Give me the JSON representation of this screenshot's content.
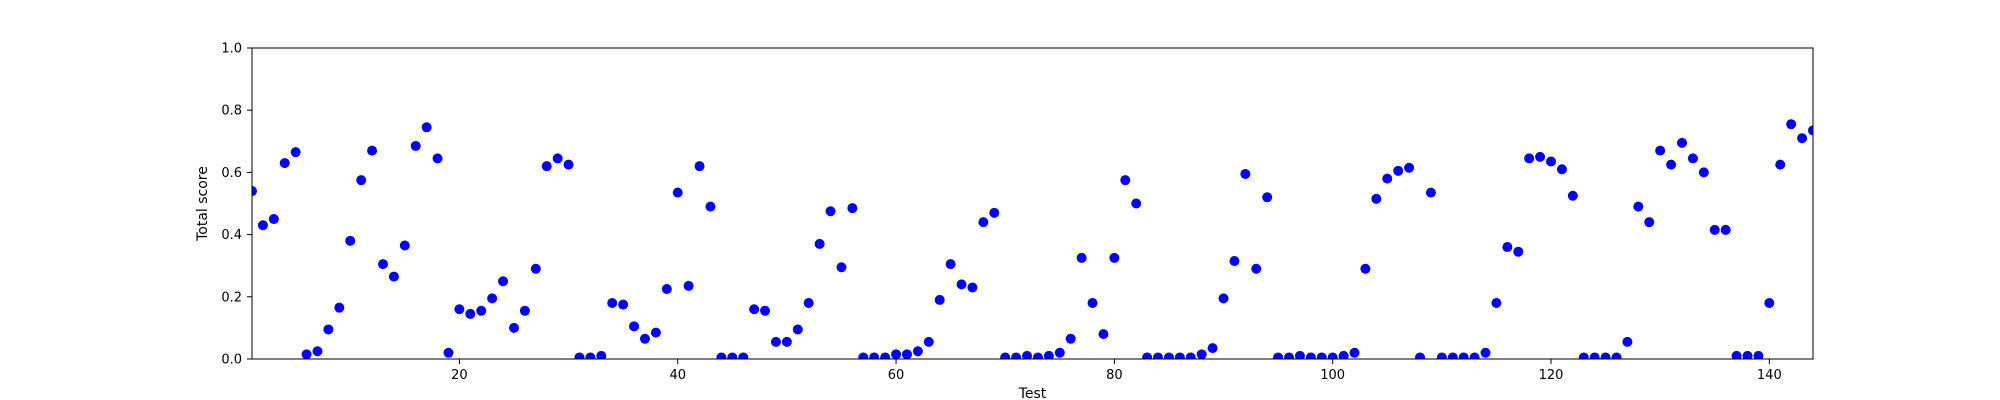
{
  "chart_data": {
    "type": "scatter",
    "xlabel": "Test",
    "ylabel": "Total score",
    "xlim": [
      1,
      144
    ],
    "ylim": [
      0.0,
      1.0
    ],
    "xticks": [
      20,
      40,
      60,
      80,
      100,
      120,
      140
    ],
    "xtick_labels": [
      "20",
      "40",
      "60",
      "80",
      "100",
      "120",
      "140"
    ],
    "yticks": [
      0.0,
      0.2,
      0.4,
      0.6,
      0.8,
      1.0
    ],
    "ytick_labels": [
      "0.0",
      "0.2",
      "0.4",
      "0.6",
      "0.8",
      "1.0"
    ],
    "grid": false,
    "marker_color": "#0000ff",
    "x": [
      1,
      2,
      3,
      4,
      5,
      6,
      7,
      8,
      9,
      10,
      11,
      12,
      13,
      14,
      15,
      16,
      17,
      18,
      19,
      20,
      21,
      22,
      23,
      24,
      25,
      26,
      27,
      28,
      29,
      30,
      31,
      32,
      33,
      34,
      35,
      36,
      37,
      38,
      39,
      40,
      41,
      42,
      43,
      44,
      45,
      46,
      47,
      48,
      49,
      50,
      51,
      52,
      53,
      54,
      55,
      56,
      57,
      58,
      59,
      60,
      61,
      62,
      63,
      64,
      65,
      66,
      67,
      68,
      69,
      70,
      71,
      72,
      73,
      74,
      75,
      76,
      77,
      78,
      79,
      80,
      81,
      82,
      83,
      84,
      85,
      86,
      87,
      88,
      89,
      90,
      91,
      92,
      93,
      94,
      95,
      96,
      97,
      98,
      99,
      100,
      101,
      102,
      103,
      104,
      105,
      106,
      107,
      108,
      109,
      110,
      111,
      112,
      113,
      114,
      115,
      116,
      117,
      118,
      119,
      120,
      121,
      122,
      123,
      124,
      125,
      126,
      127,
      128,
      129,
      130,
      131,
      132,
      133,
      134,
      135,
      136,
      137,
      138,
      139,
      140,
      141,
      142,
      143,
      144
    ],
    "y": [
      0.54,
      0.43,
      0.45,
      0.63,
      0.665,
      0.015,
      0.025,
      0.095,
      0.165,
      0.38,
      0.575,
      0.67,
      0.305,
      0.265,
      0.365,
      0.685,
      0.745,
      0.645,
      0.02,
      0.16,
      0.145,
      0.155,
      0.195,
      0.25,
      0.1,
      0.155,
      0.29,
      0.62,
      0.645,
      0.625,
      0.005,
      0.005,
      0.01,
      0.18,
      0.175,
      0.105,
      0.065,
      0.085,
      0.225,
      0.535,
      0.235,
      0.62,
      0.49,
      0.005,
      0.005,
      0.005,
      0.16,
      0.155,
      0.055,
      0.055,
      0.095,
      0.18,
      0.37,
      0.475,
      0.295,
      0.485,
      0.005,
      0.005,
      0.005,
      0.015,
      0.015,
      0.025,
      0.055,
      0.19,
      0.305,
      0.24,
      0.23,
      0.44,
      0.47,
      0.005,
      0.005,
      0.01,
      0.005,
      0.01,
      0.02,
      0.065,
      0.325,
      0.18,
      0.08,
      0.325,
      0.575,
      0.5,
      0.005,
      0.005,
      0.005,
      0.005,
      0.005,
      0.015,
      0.035,
      0.195,
      0.315,
      0.595,
      0.29,
      0.52,
      0.005,
      0.005,
      0.01,
      0.005,
      0.005,
      0.005,
      0.01,
      0.02,
      0.29,
      0.515,
      0.58,
      0.605,
      0.615,
      0.005,
      0.535,
      0.005,
      0.005,
      0.005,
      0.005,
      0.02,
      0.18,
      0.36,
      0.345,
      0.645,
      0.65,
      0.635,
      0.61,
      0.525,
      0.005,
      0.005,
      0.005,
      0.005,
      0.055,
      0.49,
      0.44,
      0.67,
      0.625,
      0.695,
      0.645,
      0.6,
      0.415,
      0.415,
      0.01,
      0.01,
      0.01,
      0.18,
      0.625,
      0.755,
      0.71,
      0.735
    ]
  }
}
